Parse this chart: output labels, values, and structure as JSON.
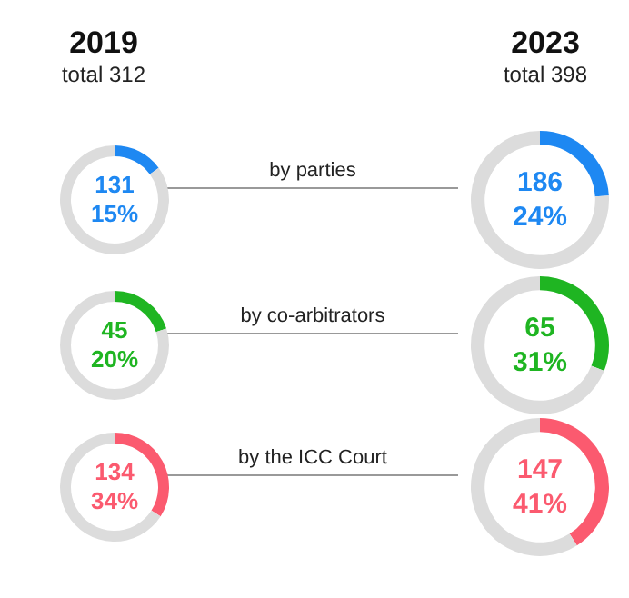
{
  "chart_data": [
    {
      "type": "donut",
      "title": "2019",
      "subtitle": "total 312",
      "categories": [
        null,
        null
      ],
      "values": [
        15,
        85
      ],
      "colors": [
        "#1e88f2",
        "#dcdcdc"
      ],
      "annotations": [
        "131",
        "15%",
        "by parties"
      ]
    },
    {
      "type": "donut",
      "title": "2023",
      "subtitle": "total 398",
      "categories": [
        null,
        null
      ],
      "values": [
        24,
        76
      ],
      "colors": [
        "#1e88f2",
        "#dcdcdc"
      ],
      "annotations": [
        "186",
        "24%"
      ]
    },
    {
      "type": "donut",
      "categories": [
        null,
        null
      ],
      "values": [
        20,
        80
      ],
      "colors": [
        "#1fb522",
        "#dcdcdc"
      ],
      "annotations": [
        "45",
        "20%",
        "by co-arbitrators"
      ]
    },
    {
      "type": "donut",
      "categories": [
        null,
        null
      ],
      "values": [
        31,
        69
      ],
      "colors": [
        "#1fb522",
        "#dcdcdc"
      ],
      "annotations": [
        "65",
        "31%"
      ]
    },
    {
      "type": "donut",
      "categories": [
        null,
        null
      ],
      "values": [
        34,
        66
      ],
      "colors": [
        "#fb5a6f",
        "#dcdcdc"
      ],
      "annotations": [
        "134",
        "34%",
        "by the ICC Court"
      ]
    },
    {
      "type": "donut",
      "categories": [
        null,
        null
      ],
      "values": [
        41,
        59
      ],
      "colors": [
        "#fb5a6f",
        "#dcdcdc"
      ],
      "annotations": [
        "147",
        "41%"
      ]
    }
  ]
}
